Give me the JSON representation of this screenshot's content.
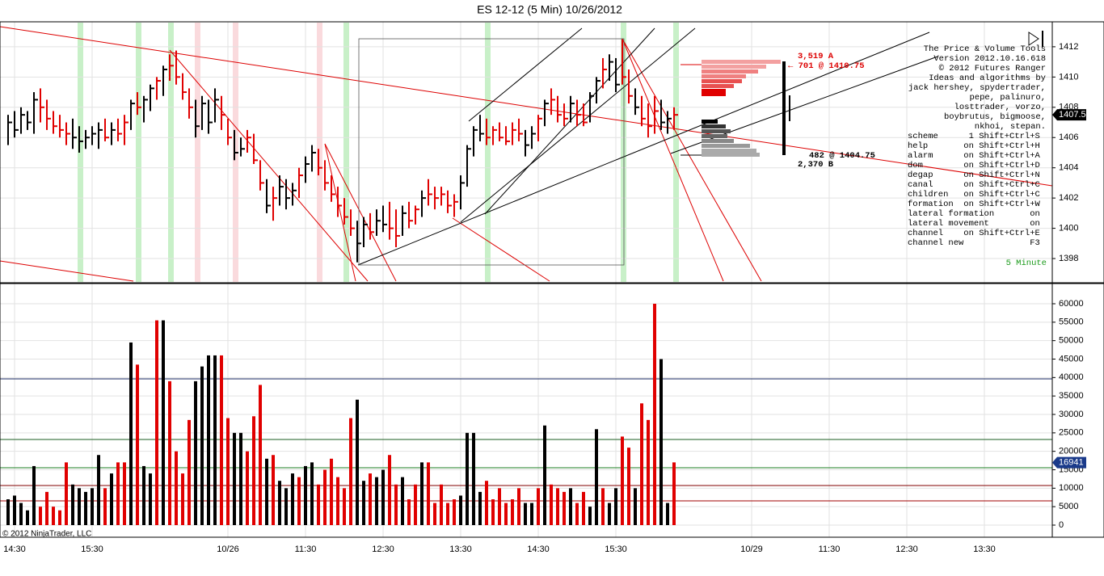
{
  "chart_data": [
    {
      "type": "ohlc",
      "title": "ES 12-12 (5 Min)  10/26/2012",
      "xlim": [
        -1.25,
        161.5
      ],
      "xticks": [
        {
          "value": 1,
          "label": "14:30"
        },
        {
          "value": 13,
          "label": "15:30"
        },
        {
          "value": 34,
          "label": "10/26"
        },
        {
          "value": 46,
          "label": "11:30"
        },
        {
          "value": 58,
          "label": "12:30"
        },
        {
          "value": 70,
          "label": "13:30"
        },
        {
          "value": 82,
          "label": "14:30"
        },
        {
          "value": 94,
          "label": "15:30"
        },
        {
          "value": 115,
          "label": "10/29"
        },
        {
          "value": 127,
          "label": "11:30"
        },
        {
          "value": 139,
          "label": "12:30"
        },
        {
          "value": 151,
          "label": "13:30"
        }
      ],
      "ylim": [
        1396.4,
        1413.65
      ],
      "yticks": [
        1398,
        1400,
        1402,
        1404,
        1406,
        1408,
        1410,
        1412
      ],
      "grid": true,
      "high": [
        1407.5,
        1407.75,
        1408,
        1407.75,
        1409,
        1409.25,
        1408.5,
        1407.75,
        1407.5,
        1407,
        1407.25,
        1406.75,
        1406.5,
        1406.75,
        1407,
        1407.25,
        1407,
        1407.25,
        1407.5,
        1408.5,
        1409,
        1408.75,
        1409.5,
        1410,
        1410.75,
        1411.5,
        1411.75,
        1410.25,
        1409.25,
        1408.5,
        1408.75,
        1408.5,
        1409.25,
        1408.75,
        1407.25,
        1406.5,
        1406,
        1406.5,
        1406.25,
        1404.5,
        1403.25,
        1402.75,
        1403.5,
        1403.25,
        1403,
        1404,
        1404.75,
        1405.5,
        1405.25,
        1404.5,
        1403.5,
        1402.75,
        1402,
        1401.25,
        1400.5,
        1400.75,
        1401,
        1401.25,
        1401.5,
        1401.75,
        1401.25,
        1401.5,
        1401.75,
        1401.5,
        1402.5,
        1403.25,
        1402.75,
        1402.75,
        1402.5,
        1402.25,
        1403.5,
        1405.5,
        1406.75,
        1407.5,
        1407.25,
        1406.75,
        1407,
        1406.75,
        1407,
        1407.25,
        1406.5,
        1406.75,
        1407.5,
        1408.5,
        1409.25,
        1408.75,
        1408.25,
        1408.75,
        1408.5,
        1408.25,
        1409,
        1410,
        1411.25,
        1411.5,
        1411.25,
        1412.5,
        1410.5,
        1409.25,
        1408.75,
        1408.25,
        1408.75,
        1408.5,
        1407.75,
        1408
      ],
      "low": [
        1405.5,
        1406,
        1406.25,
        1406.5,
        1406.25,
        1407,
        1406.5,
        1406.25,
        1406,
        1405.5,
        1405.25,
        1405,
        1405.25,
        1405.5,
        1405.25,
        1405.75,
        1405.5,
        1405.75,
        1405.5,
        1406.5,
        1407.5,
        1407,
        1407.75,
        1408.5,
        1408.75,
        1409.75,
        1409.5,
        1408.5,
        1407.25,
        1406,
        1406.5,
        1406.25,
        1407,
        1406.5,
        1405.5,
        1404.5,
        1404.75,
        1405,
        1404.25,
        1402.5,
        1401,
        1400.5,
        1401.5,
        1401.25,
        1401.5,
        1402,
        1403,
        1403.75,
        1403.5,
        1402.5,
        1401.75,
        1400.75,
        1400.25,
        1399.5,
        1397.75,
        1398.75,
        1399.25,
        1399.5,
        1399.75,
        1399.25,
        1398.75,
        1399.5,
        1400,
        1400.25,
        1400.75,
        1401.5,
        1401.25,
        1401.5,
        1401,
        1400.75,
        1401.25,
        1402.75,
        1404.75,
        1405.75,
        1405.5,
        1405.5,
        1405.75,
        1405.5,
        1405.5,
        1405.75,
        1404.75,
        1405.25,
        1405.75,
        1406.75,
        1407.5,
        1407,
        1406.75,
        1407,
        1406.75,
        1406.75,
        1407,
        1408.25,
        1409.25,
        1409.75,
        1409,
        1409.5,
        1408.25,
        1407.5,
        1406.75,
        1406,
        1406.25,
        1406.5,
        1406.25,
        1406.5
      ],
      "close": [
        1407,
        1406.5,
        1407.5,
        1407,
        1408.5,
        1408,
        1407.25,
        1406.75,
        1406.5,
        1406.25,
        1406,
        1405.75,
        1406,
        1406.25,
        1406.5,
        1406,
        1406.5,
        1406.25,
        1407,
        1408.25,
        1408,
        1408.5,
        1409.25,
        1409.75,
        1410.5,
        1410.75,
        1410,
        1409,
        1408,
        1406.75,
        1408.25,
        1407,
        1408.5,
        1407.5,
        1406,
        1405,
        1405.25,
        1406,
        1404.5,
        1403,
        1401.5,
        1402,
        1402.75,
        1402,
        1402.5,
        1403.5,
        1404.25,
        1405,
        1404,
        1403,
        1402.25,
        1401.5,
        1400.75,
        1400,
        1399,
        1400.25,
        1399.75,
        1400.5,
        1400.25,
        1400,
        1399.5,
        1401,
        1400.5,
        1401.25,
        1402,
        1402.25,
        1402,
        1402.25,
        1401.5,
        1401.75,
        1403,
        1405.25,
        1406.5,
        1406.25,
        1406,
        1406.5,
        1406,
        1405.75,
        1406.5,
        1406.25,
        1405.5,
        1406.25,
        1407.25,
        1408.25,
        1408.5,
        1407.5,
        1407.25,
        1408.25,
        1407.5,
        1407,
        1408.75,
        1409.75,
        1410.5,
        1411,
        1409.5,
        1410,
        1408.75,
        1408,
        1407.25,
        1406.75,
        1407.75,
        1407,
        1407.25,
        1407.5
      ],
      "bar_colors": [
        "#000000",
        "#000000",
        "#000000",
        "#000000",
        "#000000",
        "#e00000",
        "#e00000",
        "#e00000",
        "#e00000",
        "#e00000",
        "#000000",
        "#000000",
        "#000000",
        "#000000",
        "#000000",
        "#e00000",
        "#000000",
        "#e00000",
        "#e00000",
        "#000000",
        "#e00000",
        "#000000",
        "#000000",
        "#e00000",
        "#000000",
        "#e00000",
        "#e00000",
        "#e00000",
        "#e00000",
        "#000000",
        "#000000",
        "#000000",
        "#000000",
        "#e00000",
        "#e00000",
        "#000000",
        "#000000",
        "#e00000",
        "#e00000",
        "#e00000",
        "#000000",
        "#e00000",
        "#000000",
        "#000000",
        "#000000",
        "#e00000",
        "#000000",
        "#000000",
        "#e00000",
        "#e00000",
        "#e00000",
        "#e00000",
        "#e00000",
        "#e00000",
        "#000000",
        "#000000",
        "#e00000",
        "#000000",
        "#000000",
        "#e00000",
        "#e00000",
        "#000000",
        "#e00000",
        "#e00000",
        "#000000",
        "#e00000",
        "#e00000",
        "#e00000",
        "#e00000",
        "#e00000",
        "#000000",
        "#000000",
        "#000000",
        "#000000",
        "#e00000",
        "#e00000",
        "#e00000",
        "#e00000",
        "#e00000",
        "#e00000",
        "#000000",
        "#000000",
        "#e00000",
        "#000000",
        "#e00000",
        "#e00000",
        "#e00000",
        "#000000",
        "#e00000",
        "#e00000",
        "#000000",
        "#000000",
        "#e00000",
        "#000000",
        "#000000",
        "#e00000",
        "#e00000",
        "#000000",
        "#e00000",
        "#e00000",
        "#e00000",
        "#000000",
        "#000000",
        "#e00000"
      ],
      "last_value": {
        "value": 1407.5,
        "label": "1407.50"
      },
      "ask_label": "3,519 A",
      "ask_price_label": "← 701 @ 1410.75",
      "bid_price_label": "482 @ 1404.75",
      "bid_label": "2,370 B",
      "info_header": [
        "The Price & Volume Tools",
        "Version 2012.10.16.618",
        "© 2012 Futures Ranger",
        "Ideas and algorithms by",
        "jack hershey, spydertrader,",
        "pepe, palinuro,",
        "losttrader, vorzo,",
        "boybrutus, bigmoose,",
        "nkhoi, stepan."
      ],
      "info_table": [
        "scheme      1 Shift+Ctrl+S",
        "help       on Shift+Ctrl+H",
        "alarm      on Shift+Ctrl+A",
        "dom        on Shift+Ctrl+D",
        "degap      on Shift+Ctrl+N",
        "canal      on Shift+Ctrl+C",
        "children   on Shift+Ctrl+C",
        "formation  on Shift+Ctrl+W",
        "lateral formation       on",
        "lateral movement        on",
        "channel    on Shift+Ctrl+E",
        "channel new             F3"
      ],
      "period_label": "5 Minute"
    },
    {
      "type": "volume",
      "ylim": [
        -3285,
        65255
      ],
      "yticks": [
        0,
        5000,
        10000,
        15000,
        20000,
        25000,
        30000,
        35000,
        40000,
        45000,
        50000,
        55000,
        60000
      ],
      "grid": true,
      "values": [
        7000,
        8000,
        6000,
        4000,
        16000,
        5000,
        9000,
        5000,
        4000,
        17000,
        11000,
        10000,
        9000,
        10000,
        19000,
        10000,
        14000,
        17000,
        17000,
        49500,
        43500,
        16000,
        14000,
        55500,
        55500,
        39000,
        20000,
        14000,
        28500,
        39000,
        43000,
        46000,
        46000,
        46000,
        29000,
        25000,
        25000,
        20000,
        29500,
        38000,
        18000,
        19000,
        12000,
        10000,
        14000,
        13000,
        16000,
        17000,
        11000,
        15000,
        18000,
        13000,
        10000,
        29000,
        34000,
        12000,
        14000,
        13000,
        15000,
        19000,
        11000,
        13000,
        7000,
        11000,
        17000,
        17000,
        6000,
        11000,
        6000,
        7000,
        8000,
        25000,
        25000,
        9000,
        12000,
        7000,
        10000,
        6000,
        7000,
        10000,
        6000,
        6000,
        10000,
        27000,
        11000,
        10000,
        9000,
        10000,
        6000,
        9000,
        5000,
        26000,
        10000,
        6000,
        10000,
        24000,
        21000,
        10000,
        33000,
        28500,
        60000,
        45000,
        6000,
        17000
      ],
      "last_value": {
        "value": 16941,
        "label": "16941"
      },
      "copyright": "© 2012 NinjaTrader, LLC"
    }
  ]
}
